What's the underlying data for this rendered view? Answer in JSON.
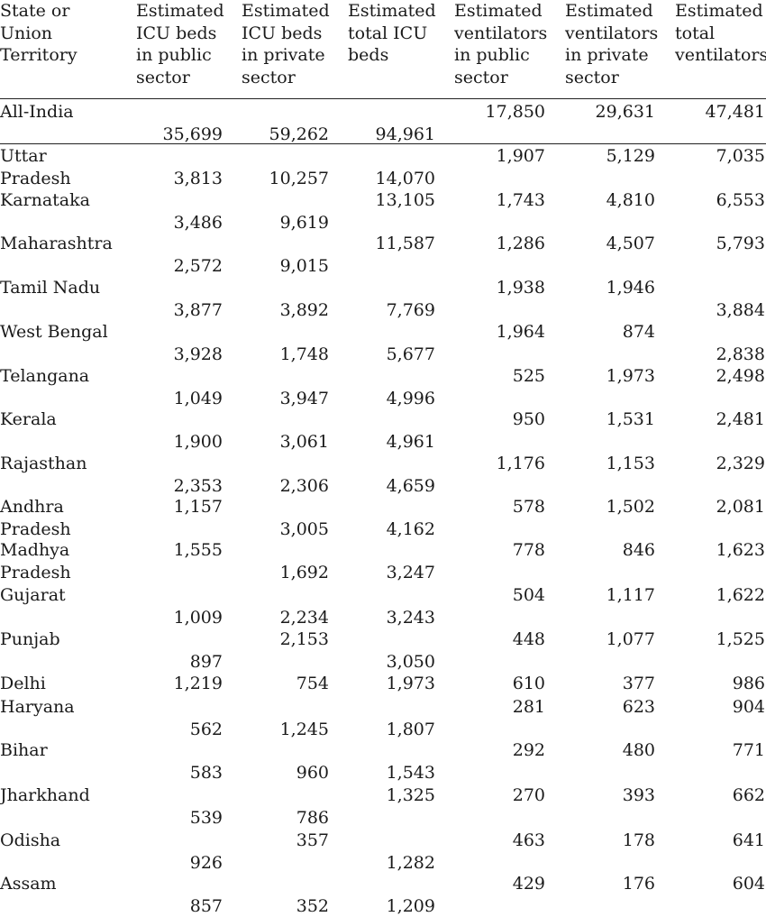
{
  "headers": [
    "State or\nUnion\nTerritory",
    "Estimated\nICU beds\nin public\nsector",
    "Estimated\nICU beds\nin private\nsector",
    "Estimated\ntotal ICU\nbeds",
    "Estimated\nventilators\nin public\nsector",
    "Estimated\nventilators\nin private\nsector",
    "Estimated\ntotal\nventilators"
  ],
  "rows": [
    {
      "state": [
        "All-India"
      ],
      "values": [
        "35,699",
        "59,262",
        "94,961",
        "17,850",
        "29,631",
        "47,481"
      ]
    },
    {
      "state": [
        "Uttar",
        "Pradesh"
      ],
      "values": [
        "3,813",
        "10,257",
        "14,070",
        "1,907",
        "5,129",
        "7,035"
      ]
    },
    {
      "state": [
        "Karnataka"
      ],
      "values": [
        "3,486",
        "9,619",
        "13,105",
        "1,743",
        "4,810",
        "6,553"
      ]
    },
    {
      "state": [
        "Maharashtra"
      ],
      "values": [
        "2,572",
        "9,015",
        "11,587",
        "1,286",
        "4,507",
        "5,793"
      ]
    },
    {
      "state": [
        "Tamil Nadu"
      ],
      "values": [
        "3,877",
        "3,892",
        "7,769",
        "1,938",
        "1,946",
        "3,884"
      ]
    },
    {
      "state": [
        "West Bengal"
      ],
      "values": [
        "3,928",
        "1,748",
        "5,677",
        "1,964",
        "874",
        "2,838"
      ]
    },
    {
      "state": [
        "Telangana"
      ],
      "values": [
        "1,049",
        "3,947",
        "4,996",
        "525",
        "1,973",
        "2,498"
      ]
    },
    {
      "state": [
        "Kerala"
      ],
      "values": [
        "1,900",
        "3,061",
        "4,961",
        "950",
        "1,531",
        "2,481"
      ]
    },
    {
      "state": [
        "Rajasthan"
      ],
      "values": [
        "2,353",
        "2,306",
        "4,659",
        "1,176",
        "1,153",
        "2,329"
      ]
    },
    {
      "state": [
        "Andhra",
        "Pradesh"
      ],
      "values": [
        "1,157",
        "3,005",
        "4,162",
        "578",
        "1,502",
        "2,081"
      ]
    },
    {
      "state": [
        "Madhya",
        "Pradesh"
      ],
      "values": [
        "1,555",
        "1,692",
        "3,247",
        "778",
        "846",
        "1,623"
      ]
    },
    {
      "state": [
        "Gujarat"
      ],
      "values": [
        "1,009",
        "2,234",
        "3,243",
        "504",
        "1,117",
        "1,622"
      ]
    },
    {
      "state": [
        "Punjab"
      ],
      "values": [
        "897",
        "2,153",
        "3,050",
        "448",
        "1,077",
        "1,525"
      ]
    },
    {
      "state": [
        "Delhi"
      ],
      "values": [
        "1,219",
        "754",
        "1,973",
        "610",
        "377",
        "986"
      ]
    },
    {
      "state": [
        "Haryana"
      ],
      "values": [
        "562",
        "1,245",
        "1,807",
        "281",
        "623",
        "904"
      ]
    },
    {
      "state": [
        "Bihar"
      ],
      "values": [
        "583",
        "960",
        "1,543",
        "292",
        "480",
        "771"
      ]
    },
    {
      "state": [
        "Jharkhand"
      ],
      "values": [
        "539",
        "786",
        "1,325",
        "270",
        "393",
        "662"
      ]
    },
    {
      "state": [
        "Odisha"
      ],
      "values": [
        "926",
        "357",
        "1,282",
        "463",
        "178",
        "641"
      ]
    },
    {
      "state": [
        "Assam"
      ],
      "values": [
        "857",
        "352",
        "1,209",
        "429",
        "176",
        "604"
      ]
    }
  ]
}
